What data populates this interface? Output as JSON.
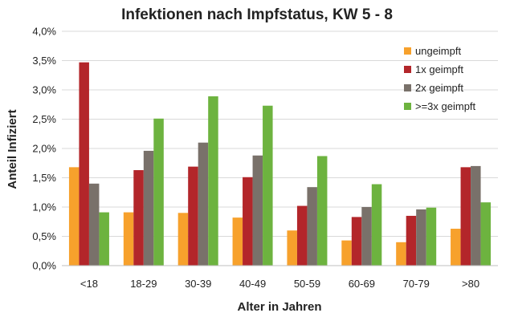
{
  "chart_data": {
    "type": "bar",
    "title": "Infektionen nach Impfstatus, KW 5 - 8",
    "xlabel": "Alter in Jahren",
    "ylabel": "Anteil Infiziert",
    "categories": [
      "<18",
      "18-29",
      "30-39",
      "40-49",
      "50-59",
      "60-69",
      "70-79",
      ">80"
    ],
    "ylim": [
      0,
      4.0
    ],
    "yticks": [
      0,
      0.5,
      1.0,
      1.5,
      2.0,
      2.5,
      3.0,
      3.5,
      4.0
    ],
    "ytick_labels": [
      "0,0%",
      "0,5%",
      "1,0%",
      "1,5%",
      "2,0%",
      "2,5%",
      "3,0%",
      "3,5%",
      "4,0%"
    ],
    "value_unit": "%",
    "grid": true,
    "legend_position": "top-right",
    "series": [
      {
        "name": "ungeimpft",
        "color": "#F7A12C",
        "values": [
          1.68,
          0.91,
          0.9,
          0.82,
          0.6,
          0.43,
          0.4,
          0.63
        ]
      },
      {
        "name": "1x geimpft",
        "color": "#B3262A",
        "values": [
          3.47,
          1.63,
          1.69,
          1.51,
          1.02,
          0.83,
          0.85,
          1.68
        ]
      },
      {
        "name": "2x geimpft",
        "color": "#79716A",
        "values": [
          1.4,
          1.96,
          2.1,
          1.88,
          1.34,
          1.0,
          0.96,
          1.7
        ]
      },
      {
        "name": ">=3x geimpft",
        "color": "#6DB33F",
        "values": [
          0.91,
          2.51,
          2.89,
          2.73,
          1.87,
          1.39,
          0.99,
          1.08
        ]
      }
    ]
  }
}
